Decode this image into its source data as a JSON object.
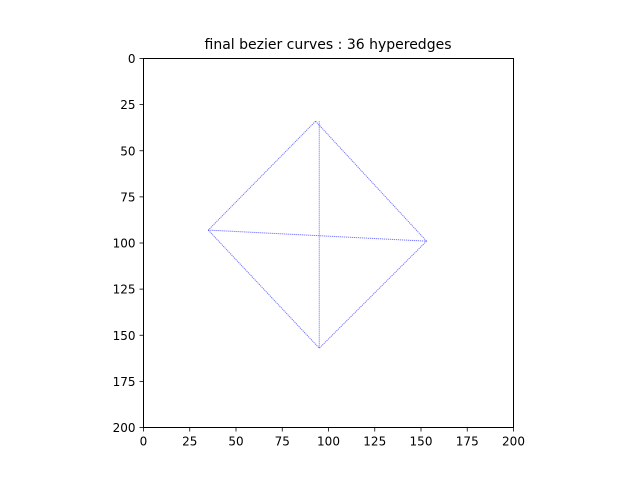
{
  "chart_data": {
    "type": "line",
    "title": "final bezier curves : 36 hyperedges",
    "xlabel": "",
    "ylabel": "",
    "xlim": [
      0,
      200
    ],
    "ylim": [
      200,
      0
    ],
    "y_inverted": true,
    "grid": false,
    "legend": "none",
    "xticks": [
      0,
      25,
      50,
      75,
      100,
      125,
      150,
      175,
      200
    ],
    "yticks": [
      0,
      25,
      50,
      75,
      100,
      125,
      150,
      175,
      200
    ],
    "line_color": "#0000ff",
    "series": [
      {
        "x": [
          93,
          35
        ],
        "y": [
          34,
          93
        ]
      },
      {
        "x": [
          93,
          153
        ],
        "y": [
          34,
          99
        ]
      },
      {
        "x": [
          35,
          95
        ],
        "y": [
          93,
          157
        ]
      },
      {
        "x": [
          153,
          95
        ],
        "y": [
          99,
          157
        ]
      },
      {
        "x": [
          95,
          95
        ],
        "y": [
          34,
          157
        ]
      },
      {
        "x": [
          35,
          153
        ],
        "y": [
          93,
          99
        ]
      }
    ]
  }
}
